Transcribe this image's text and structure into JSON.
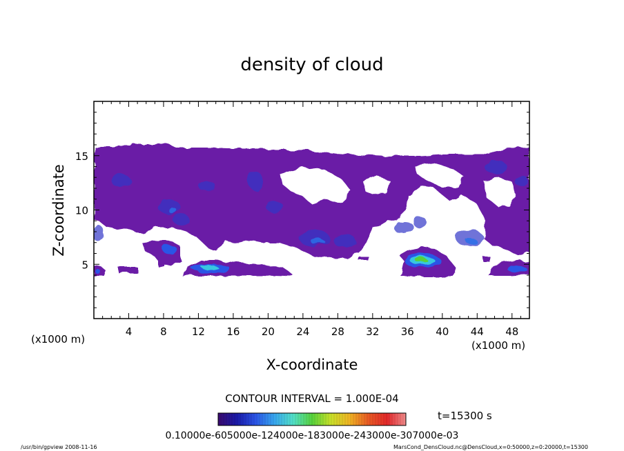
{
  "chart_data": {
    "type": "heatmap",
    "title": "density of cloud",
    "xlabel": "X-coordinate",
    "ylabel": "Z-coordinate",
    "x_unit_label": "(x1000 m)",
    "x_unit_label_right": "(x1000 m)",
    "xlim": [
      0,
      50
    ],
    "ylim": [
      0,
      20
    ],
    "xticks": [
      4,
      8,
      12,
      16,
      20,
      24,
      28,
      32,
      36,
      40,
      44,
      48
    ],
    "yticks": [
      5,
      10,
      15
    ],
    "contour_interval_text": "CONTOUR INTERVAL = 1.000E-04",
    "time_text": "t=15300 s",
    "colorbar": {
      "min": 0.0001,
      "max": 0.0007,
      "tick_labels_text": "0.10000e-605000e-124000e-183000e-243000e-307000e-03",
      "colors": [
        "#3a0a6e",
        "#1a1aa8",
        "#2b55e6",
        "#38a6ee",
        "#52e0c8",
        "#57d23c",
        "#c8e02a",
        "#f0b424",
        "#e85a24",
        "#e2282a",
        "#f08c8c"
      ]
    },
    "regions": [
      {
        "name": "upper cloud layer",
        "level": 0.0001,
        "x": [
          0,
          50
        ],
        "z": [
          7.5,
          15.8
        ]
      },
      {
        "name": "low cloud band 1",
        "level": 0.0002,
        "x": [
          10.5,
          22.5
        ],
        "z": [
          3.8,
          5.5
        ]
      },
      {
        "name": "low cloud band 2",
        "level": 0.0006,
        "x": [
          35,
          40.5
        ],
        "z": [
          3.8,
          7.0
        ]
      },
      {
        "name": "low cloud band 3",
        "level": 0.0002,
        "x": [
          45.5,
          50
        ],
        "z": [
          3.8,
          5.2
        ]
      },
      {
        "name": "left edge patch",
        "level": 0.0002,
        "x": [
          0,
          1.2
        ],
        "z": [
          3.8,
          5.0
        ]
      }
    ]
  },
  "footer": {
    "left": "/usr/bin/gpview   2008-11-16",
    "right": "MarsCond_DensCloud.nc@DensCloud,x=0:50000,z=0:20000,t=15300"
  }
}
